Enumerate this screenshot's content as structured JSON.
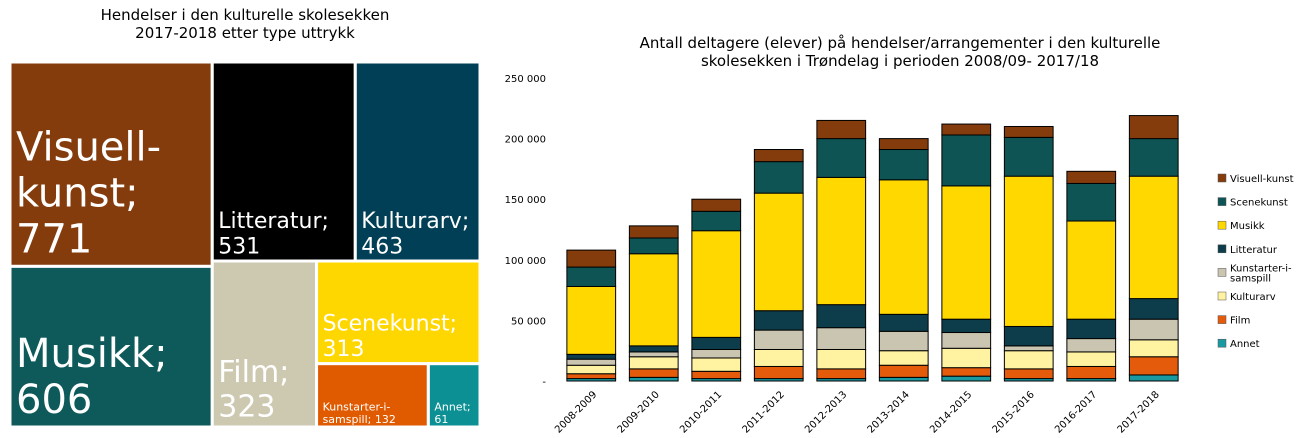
{
  "chart_data": [
    {
      "type": "treemap",
      "title": "Hendelser i den kulturelle skolesekken\n2017-2018 etter type uttrykk",
      "labels": [
        "Visuell-kunst; 771",
        "Musikk; 606",
        "Litteratur; 531",
        "Kulturarv; 463",
        "Film; 323",
        "Scenekunst; 313",
        "Kunstarter-i-samspill; 132",
        "Annet; 61"
      ],
      "values": [
        771,
        606,
        531,
        463,
        323,
        313,
        132,
        61
      ],
      "colors": [
        "#843c0c",
        "#0e5a5a",
        "#000000",
        "#003f55",
        "#cdc8b0",
        "#ffd700",
        "#e05a00",
        "#0d9094"
      ]
    },
    {
      "type": "stacked_bar",
      "title": "Antall deltagere (elever) på hendelser/arrangementer i den kulturelle\nskolesekken i Trøndelag i perioden 2008/09- 2017/18",
      "categories": [
        "2008-2009",
        "2009-2010",
        "2010-2011",
        "2011-2012",
        "2012-2013",
        "2013-2014",
        "2014-2015",
        "2015-2016",
        "2016-2017",
        "2017-2018"
      ],
      "series": [
        {
          "name": "Annet",
          "color": "#1a9aa0",
          "values": [
            2000,
            3000,
            2000,
            2000,
            2000,
            3000,
            4000,
            2000,
            2000,
            5000
          ]
        },
        {
          "name": "Film",
          "color": "#e45b0c",
          "values": [
            4000,
            7000,
            6000,
            10000,
            8000,
            10000,
            7000,
            8000,
            10000,
            15000
          ]
        },
        {
          "name": "Kulturarv",
          "color": "#fff2a0",
          "values": [
            7000,
            10000,
            11000,
            14000,
            16000,
            12000,
            16000,
            15000,
            12000,
            14000
          ]
        },
        {
          "name": "Kunstarter-i-samspill",
          "color": "#c9c5b0",
          "values": [
            5000,
            4000,
            7000,
            16000,
            18000,
            16000,
            13000,
            4000,
            11000,
            17000
          ]
        },
        {
          "name": "Litteratur",
          "color": "#0d3c4b",
          "values": [
            4000,
            5000,
            10000,
            16000,
            19000,
            14000,
            11000,
            16000,
            16000,
            17000
          ]
        },
        {
          "name": "Musikk",
          "color": "#ffd800",
          "values": [
            56000,
            76000,
            88000,
            97000,
            105000,
            111000,
            110000,
            124000,
            81000,
            101000
          ]
        },
        {
          "name": "Scenekunst",
          "color": "#0e5454",
          "values": [
            16000,
            13000,
            16000,
            26000,
            32000,
            25000,
            42000,
            32000,
            31000,
            31000
          ]
        },
        {
          "name": "Visuell-kunst",
          "color": "#843c0c",
          "values": [
            14000,
            10000,
            10000,
            10000,
            15000,
            9000,
            9000,
            9000,
            10000,
            19000
          ]
        }
      ],
      "ylim": [
        0,
        250000
      ],
      "yticks": [
        {
          "value": 0,
          "label": "-"
        },
        {
          "value": 50000,
          "label": "50 000"
        },
        {
          "value": 100000,
          "label": "100 000"
        },
        {
          "value": 150000,
          "label": "150 000"
        },
        {
          "value": 200000,
          "label": "200 000"
        },
        {
          "value": 250000,
          "label": "250 000"
        }
      ],
      "grid": false,
      "legend": "right"
    }
  ]
}
